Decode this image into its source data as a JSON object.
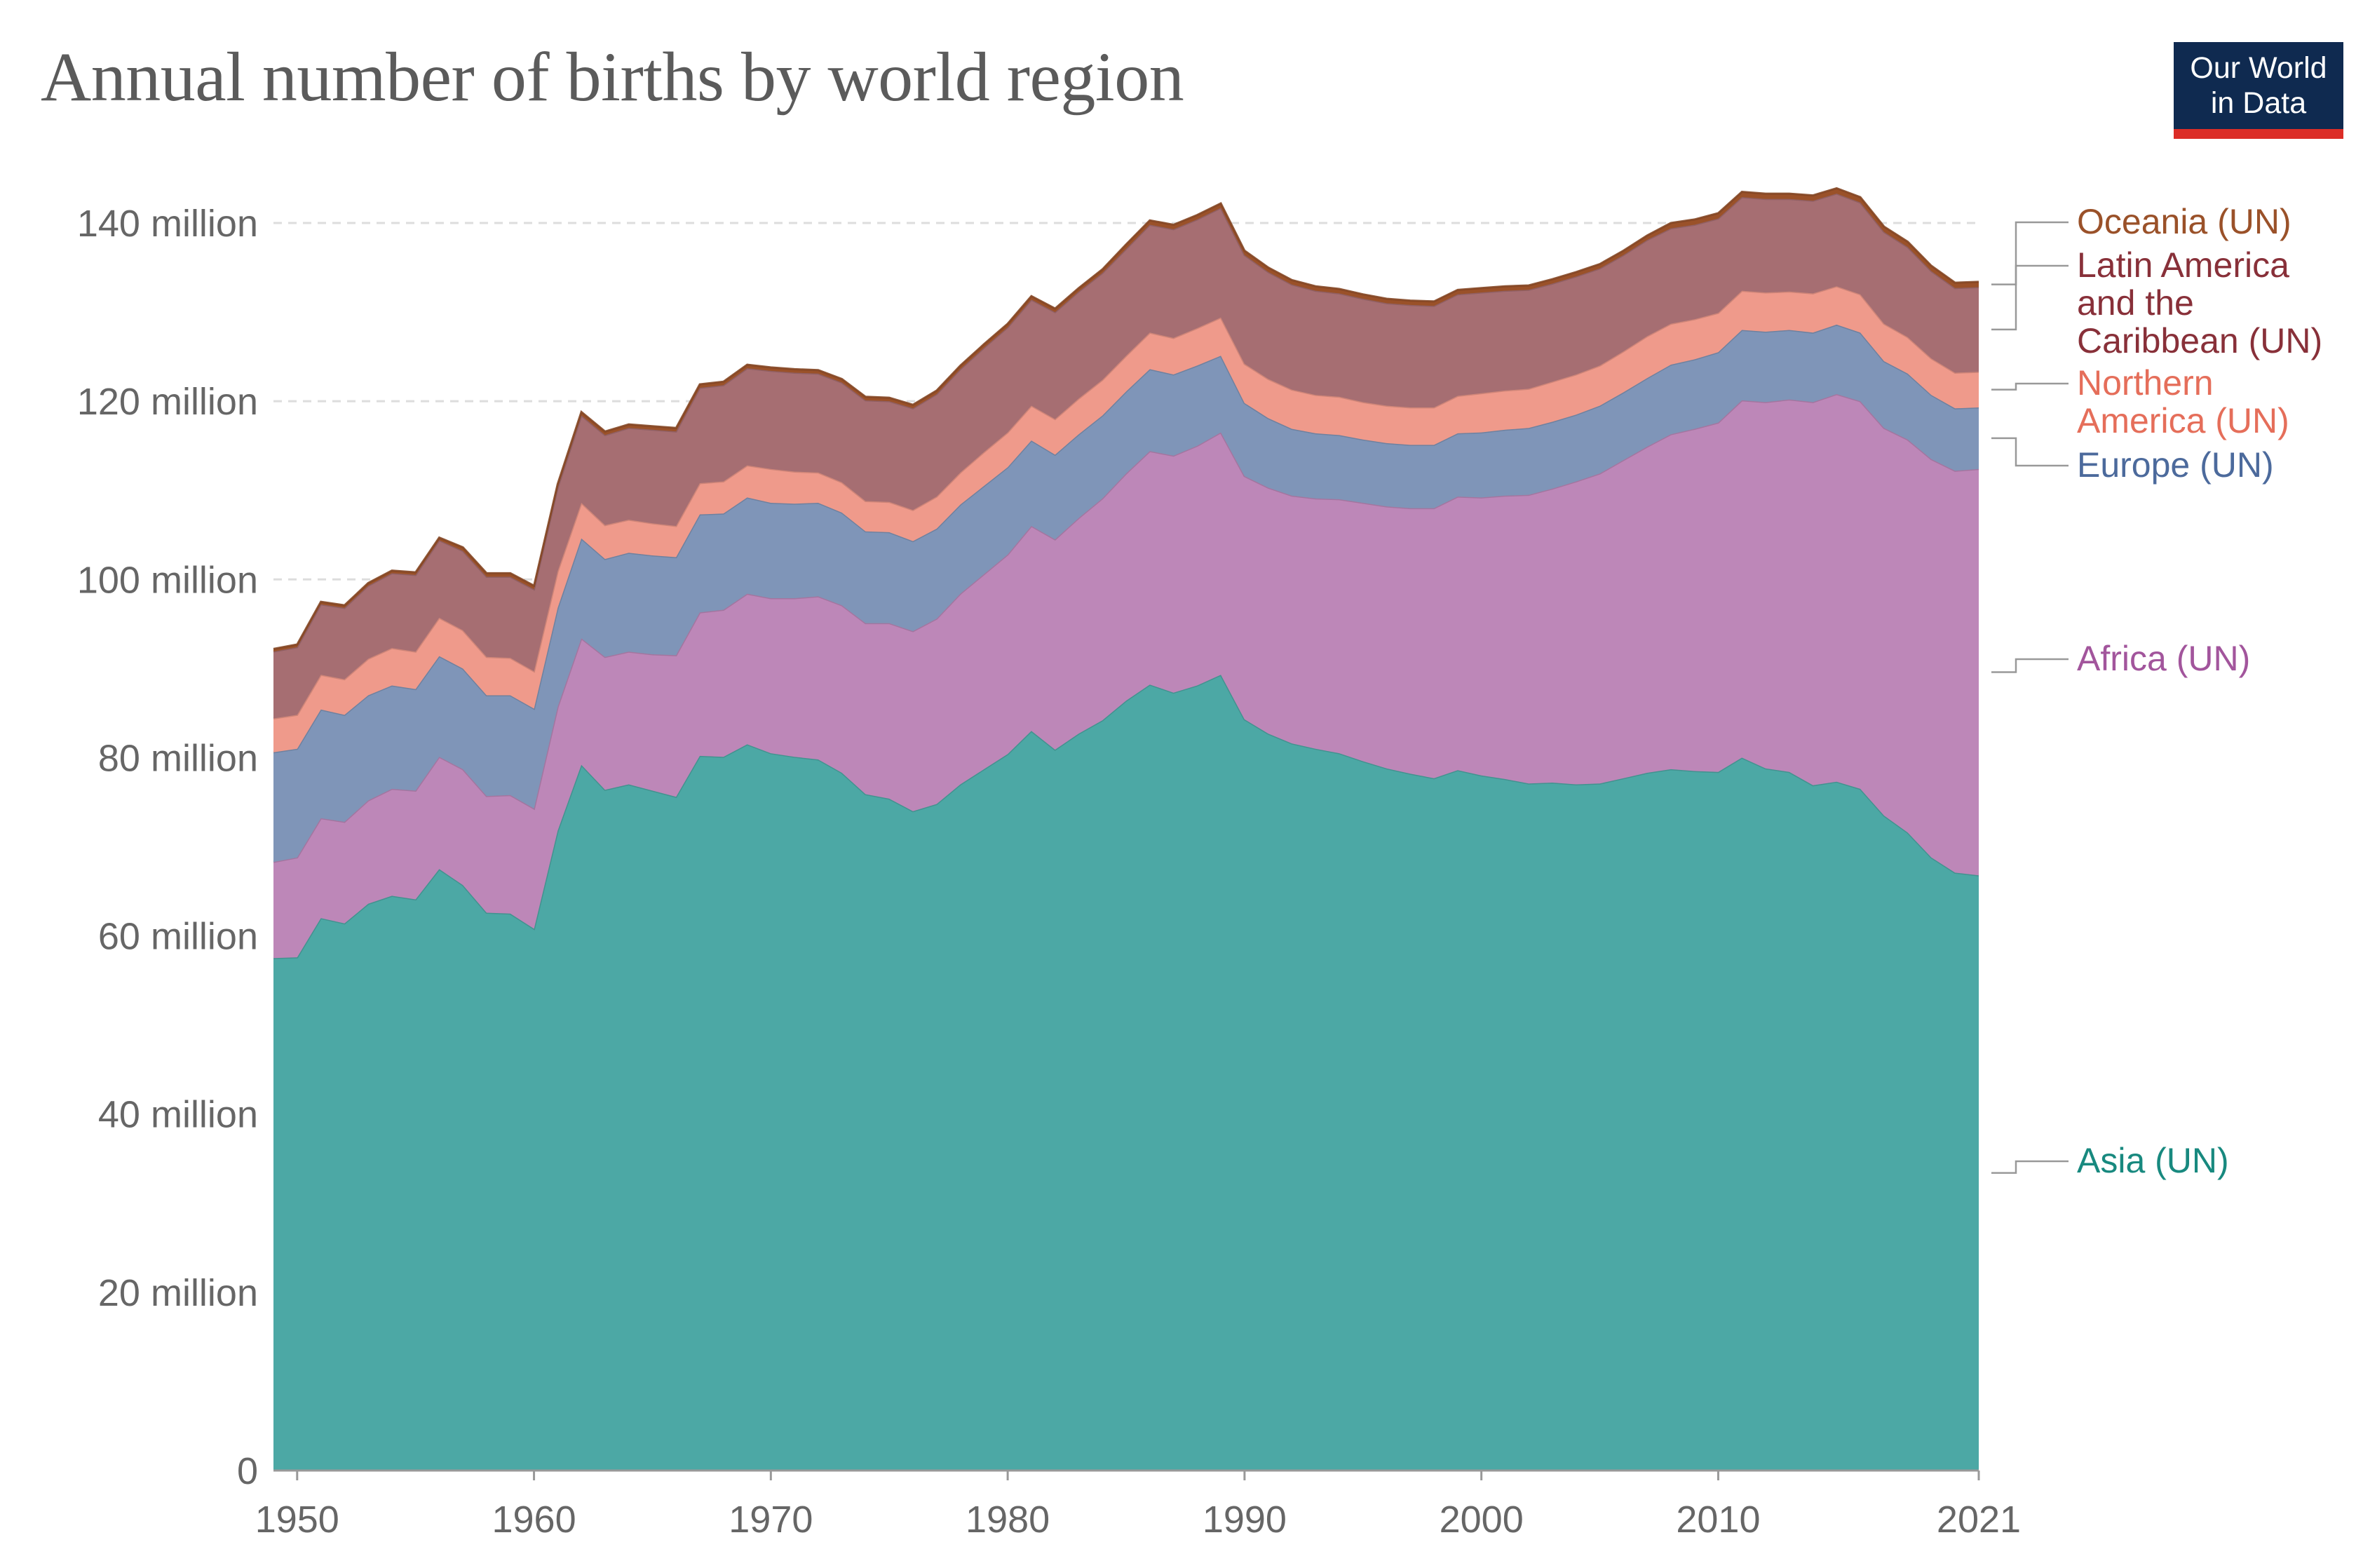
{
  "header": {
    "title": "Annual number of births by world region",
    "logo_line1": "Our World",
    "logo_line2": "in Data"
  },
  "colors": {
    "logo_bg": "#0f2a50",
    "logo_bar": "#dc2d27",
    "grid": "#dddddd",
    "axis": "#999999"
  },
  "chart_data": {
    "type": "area",
    "stacked": true,
    "title": "Annual number of births by world region",
    "xlabel": "",
    "ylabel": "",
    "xlim": [
      1949,
      2021
    ],
    "ylim": [
      0,
      140000000
    ],
    "grid": "horizontal-dashed",
    "legend_placement": "right-inline",
    "y_ticks": [
      {
        "value": 0,
        "label": "0"
      },
      {
        "value": 20000000,
        "label": "20 million"
      },
      {
        "value": 40000000,
        "label": "40 million"
      },
      {
        "value": 60000000,
        "label": "60 million"
      },
      {
        "value": 80000000,
        "label": "80 million"
      },
      {
        "value": 100000000,
        "label": "100 million"
      },
      {
        "value": 120000000,
        "label": "120 million"
      },
      {
        "value": 140000000,
        "label": "140 million"
      }
    ],
    "x_ticks": [
      {
        "value": 1950,
        "label": "1950"
      },
      {
        "value": 1960,
        "label": "1960"
      },
      {
        "value": 1970,
        "label": "1970"
      },
      {
        "value": 1980,
        "label": "1980"
      },
      {
        "value": 1990,
        "label": "1990"
      },
      {
        "value": 2000,
        "label": "2000"
      },
      {
        "value": 2010,
        "label": "2010"
      },
      {
        "value": 2021,
        "label": "2021"
      }
    ],
    "x": [
      1949,
      1950,
      1951,
      1952,
      1953,
      1954,
      1955,
      1956,
      1957,
      1958,
      1959,
      1960,
      1961,
      1962,
      1963,
      1964,
      1965,
      1966,
      1967,
      1968,
      1969,
      1970,
      1971,
      1972,
      1973,
      1974,
      1975,
      1976,
      1977,
      1978,
      1979,
      1980,
      1981,
      1982,
      1983,
      1984,
      1985,
      1986,
      1987,
      1988,
      1989,
      1990,
      1991,
      1992,
      1993,
      1994,
      1995,
      1996,
      1997,
      1998,
      1999,
      2000,
      2001,
      2002,
      2003,
      2004,
      2005,
      2006,
      2007,
      2008,
      2009,
      2010,
      2011,
      2012,
      2013,
      2014,
      2015,
      2016,
      2017,
      2018,
      2019,
      2020,
      2021
    ],
    "series": [
      {
        "name": "Asia (UN)",
        "color": "#4ca8a5",
        "label_color": "#18897f",
        "values": [
          57.5,
          57.6,
          62,
          61.4,
          63.6,
          64.5,
          64.1,
          67.5,
          65.7,
          62.6,
          62.5,
          60.8,
          71.8,
          79.2,
          76.4,
          77,
          76.3,
          75.6,
          80.2,
          80.1,
          81.5,
          80.5,
          80.1,
          79.8,
          78.3,
          75.9,
          75.4,
          74,
          74.8,
          77,
          78.7,
          80.4,
          83,
          80.9,
          82.7,
          84.2,
          86.4,
          88.2,
          87.3,
          88.1,
          89.3,
          84.3,
          82.7,
          81.6,
          81,
          80.5,
          79.6,
          78.8,
          78.2,
          77.7,
          78.6,
          78,
          77.6,
          77.1,
          77.2,
          77,
          77.1,
          77.7,
          78.3,
          78.7,
          78.5,
          78.4,
          80,
          78.8,
          78.4,
          76.9,
          77.3,
          76.5,
          73.5,
          71.6,
          68.8,
          67.1,
          66.8
        ]
      },
      {
        "name": "Africa (UN)",
        "color": "#bd87b8",
        "label_color": "#a2559c",
        "values": [
          10.8,
          11.2,
          11.2,
          11.4,
          11.6,
          12,
          12.2,
          12.6,
          13,
          13.1,
          13.3,
          13.5,
          13.9,
          14.2,
          14.9,
          14.9,
          15.3,
          15.9,
          16.1,
          16.5,
          16.9,
          17.4,
          17.8,
          18.3,
          18.8,
          19.2,
          19.7,
          20.2,
          20.8,
          21.4,
          21.9,
          22.4,
          23,
          23.6,
          24.2,
          24.9,
          25.5,
          26.2,
          26.6,
          26.9,
          27.2,
          27.3,
          27.6,
          27.8,
          28.1,
          28.5,
          29,
          29.4,
          29.8,
          30.3,
          30.7,
          31.2,
          31.8,
          32.4,
          33,
          34,
          34.8,
          35.7,
          36.6,
          37.6,
          38.4,
          39.2,
          40.1,
          41.1,
          41.8,
          43,
          43.5,
          43.5,
          43.5,
          44.1,
          44.7,
          45.1,
          45.6
        ]
      },
      {
        "name": "Europe (UN)",
        "color": "#7f95b8",
        "label_color": "#4c6a9c",
        "values": [
          12.3,
          12.2,
          12.2,
          12,
          11.8,
          11.6,
          11.4,
          11.3,
          11.3,
          11.3,
          11.2,
          11.2,
          11.1,
          11.2,
          11,
          11.1,
          11.1,
          11,
          11,
          10.8,
          10.8,
          10.7,
          10.6,
          10.5,
          10.4,
          10.3,
          10.2,
          10.1,
          10.1,
          10,
          9.9,
          9.8,
          9.6,
          9.5,
          9.4,
          9.3,
          9.2,
          9.2,
          9.1,
          9,
          8.6,
          8.2,
          7.8,
          7.5,
          7.3,
          7.2,
          7.1,
          7.1,
          7.1,
          7.1,
          7.1,
          7.3,
          7.4,
          7.5,
          7.5,
          7.5,
          7.6,
          7.6,
          7.7,
          7.8,
          7.8,
          7.9,
          7.9,
          7.9,
          7.8,
          7.8,
          7.8,
          7.7,
          7.5,
          7.4,
          7.2,
          7,
          6.9
        ]
      },
      {
        "name": "Northern America (UN)",
        "color": "#ef9a8b",
        "label_color": "#e56e5a",
        "values": [
          3.8,
          3.8,
          3.9,
          4,
          4.1,
          4.2,
          4.2,
          4.3,
          4.3,
          4.3,
          4.2,
          4.2,
          4.1,
          4,
          3.8,
          3.7,
          3.6,
          3.5,
          3.5,
          3.6,
          3.6,
          3.8,
          3.6,
          3.4,
          3.4,
          3.4,
          3.4,
          3.5,
          3.6,
          3.6,
          3.8,
          3.9,
          3.9,
          4,
          4,
          4,
          4,
          4.1,
          4.1,
          4.2,
          4.3,
          4.4,
          4.4,
          4.4,
          4.3,
          4.3,
          4.2,
          4.2,
          4.2,
          4.2,
          4.2,
          4.4,
          4.4,
          4.4,
          4.5,
          4.5,
          4.5,
          4.6,
          4.7,
          4.6,
          4.5,
          4.4,
          4.4,
          4.4,
          4.3,
          4.4,
          4.3,
          4.3,
          4.2,
          4.1,
          4.1,
          4,
          4
        ]
      },
      {
        "name": "Latin America and the Caribbean (UN)",
        "color": "#a66e72",
        "label_color": "#883039",
        "values": [
          7.5,
          7.6,
          7.9,
          8,
          8.2,
          8.4,
          8.6,
          8.7,
          8.9,
          9,
          9.1,
          9.2,
          9.4,
          9.8,
          10.1,
          10.3,
          10.5,
          10.6,
          10.7,
          10.8,
          10.9,
          11,
          11.1,
          11.1,
          11.2,
          11.3,
          11.3,
          11.4,
          11.5,
          11.6,
          11.7,
          11.8,
          11.9,
          12,
          12,
          12,
          12,
          12.1,
          12.2,
          12.2,
          12.3,
          12.2,
          12,
          11.8,
          11.7,
          11.6,
          11.6,
          11.5,
          11.5,
          11.4,
          11.4,
          11.3,
          11.2,
          11.1,
          11,
          11,
          10.9,
          10.8,
          10.8,
          10.7,
          10.6,
          10.6,
          10.5,
          10.5,
          10.4,
          10.4,
          10.4,
          10.3,
          10.3,
          10.1,
          9.8,
          9.5,
          9.5
        ]
      },
      {
        "name": "Oceania (UN)",
        "color": "#9a5129",
        "label_color": "#9a5129",
        "values": [
          0.3,
          0.3,
          0.3,
          0.3,
          0.3,
          0.3,
          0.3,
          0.3,
          0.4,
          0.4,
          0.4,
          0.4,
          0.4,
          0.4,
          0.4,
          0.4,
          0.4,
          0.4,
          0.4,
          0.4,
          0.4,
          0.4,
          0.4,
          0.4,
          0.4,
          0.4,
          0.4,
          0.4,
          0.4,
          0.4,
          0.4,
          0.4,
          0.4,
          0.4,
          0.4,
          0.4,
          0.5,
          0.5,
          0.5,
          0.5,
          0.5,
          0.5,
          0.5,
          0.5,
          0.5,
          0.5,
          0.5,
          0.5,
          0.5,
          0.5,
          0.5,
          0.5,
          0.5,
          0.5,
          0.5,
          0.5,
          0.5,
          0.5,
          0.5,
          0.6,
          0.6,
          0.6,
          0.6,
          0.6,
          0.6,
          0.6,
          0.6,
          0.6,
          0.6,
          0.6,
          0.6,
          0.6,
          0.6
        ]
      }
    ]
  }
}
